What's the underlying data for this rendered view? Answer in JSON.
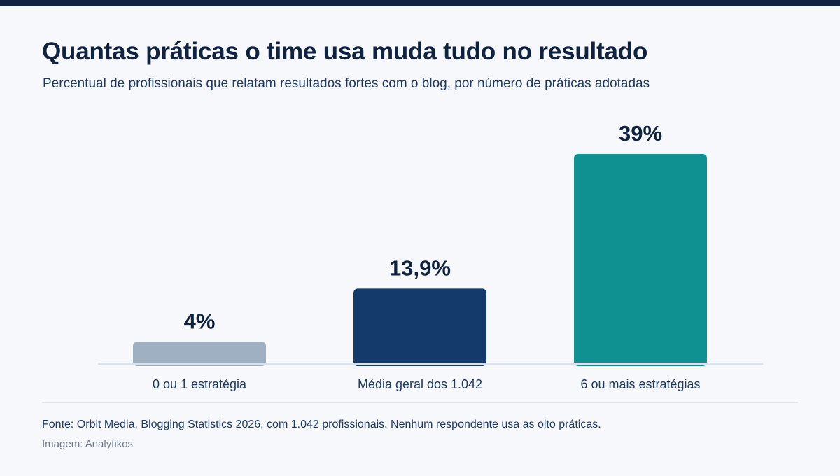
{
  "header": {
    "title": "Quantas práticas o time usa muda tudo no resultado",
    "subtitle": "Percentual de profissionais que relatam resultados fortes com o blog, por número de práticas adotadas"
  },
  "chart_data": {
    "type": "bar",
    "title": "Quantas práticas o time usa muda tudo no resultado",
    "subtitle": "Percentual de profissionais que relatam resultados fortes com o blog, por número de práticas adotadas",
    "categories": [
      "0 ou 1 estratégia",
      "Média geral dos 1.042",
      "6 ou mais estratégias"
    ],
    "values": [
      4,
      13.9,
      39
    ],
    "value_labels": [
      "4%",
      "13,9%",
      "39%"
    ],
    "colors": [
      "#9fb0c2",
      "#133a6b",
      "#0f9191"
    ],
    "ylim": [
      0,
      39
    ],
    "grid": false,
    "xlabel": "",
    "ylabel": ""
  },
  "footer": {
    "source": "Fonte: Orbit Media, Blogging Statistics 2026, com 1.042 profissionais. Nenhum respondente usa as oito práticas.",
    "credit": "Imagem: Analytikos"
  }
}
